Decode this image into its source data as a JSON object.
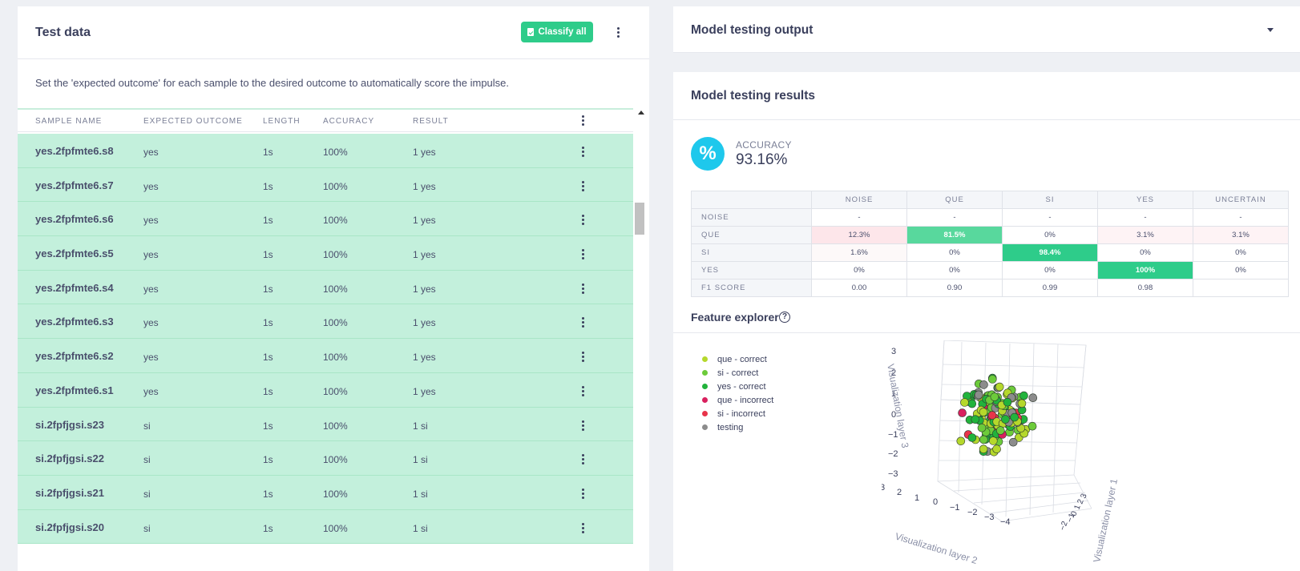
{
  "test_data": {
    "title": "Test data",
    "classify_all_label": "Classify all",
    "description": "Set the 'expected outcome' for each sample to the desired outcome to automatically score the impulse.",
    "columns": [
      "SAMPLE NAME",
      "EXPECTED OUTCOME",
      "LENGTH",
      "ACCURACY",
      "RESULT"
    ],
    "rows": [
      {
        "name": "yes.2fpfmte6.s8",
        "expected": "yes",
        "length": "1s",
        "accuracy": "100%",
        "result": "1 yes"
      },
      {
        "name": "yes.2fpfmte6.s7",
        "expected": "yes",
        "length": "1s",
        "accuracy": "100%",
        "result": "1 yes"
      },
      {
        "name": "yes.2fpfmte6.s6",
        "expected": "yes",
        "length": "1s",
        "accuracy": "100%",
        "result": "1 yes"
      },
      {
        "name": "yes.2fpfmte6.s5",
        "expected": "yes",
        "length": "1s",
        "accuracy": "100%",
        "result": "1 yes"
      },
      {
        "name": "yes.2fpfmte6.s4",
        "expected": "yes",
        "length": "1s",
        "accuracy": "100%",
        "result": "1 yes"
      },
      {
        "name": "yes.2fpfmte6.s3",
        "expected": "yes",
        "length": "1s",
        "accuracy": "100%",
        "result": "1 yes"
      },
      {
        "name": "yes.2fpfmte6.s2",
        "expected": "yes",
        "length": "1s",
        "accuracy": "100%",
        "result": "1 yes"
      },
      {
        "name": "yes.2fpfmte6.s1",
        "expected": "yes",
        "length": "1s",
        "accuracy": "100%",
        "result": "1 yes"
      },
      {
        "name": "si.2fpfjgsi.s23",
        "expected": "si",
        "length": "1s",
        "accuracy": "100%",
        "result": "1 si"
      },
      {
        "name": "si.2fpfjgsi.s22",
        "expected": "si",
        "length": "1s",
        "accuracy": "100%",
        "result": "1 si"
      },
      {
        "name": "si.2fpfjgsi.s21",
        "expected": "si",
        "length": "1s",
        "accuracy": "100%",
        "result": "1 si"
      },
      {
        "name": "si.2fpfjgsi.s20",
        "expected": "si",
        "length": "1s",
        "accuracy": "100%",
        "result": "1 si"
      }
    ]
  },
  "output_card": {
    "title": "Model testing output"
  },
  "results": {
    "title": "Model testing results",
    "accuracy_icon": "%",
    "accuracy_label": "ACCURACY",
    "accuracy_value": "93.16%",
    "matrix": {
      "columns": [
        "NOISE",
        "QUE",
        "SI",
        "YES",
        "UNCERTAIN"
      ],
      "rows": [
        {
          "label": "NOISE",
          "cells": [
            "-",
            "-",
            "-",
            "-",
            "-"
          ]
        },
        {
          "label": "QUE",
          "cells": [
            "12.3%",
            "81.5%",
            "0%",
            "3.1%",
            "3.1%"
          ]
        },
        {
          "label": "SI",
          "cells": [
            "1.6%",
            "0%",
            "98.4%",
            "0%",
            "0%"
          ]
        },
        {
          "label": "YES",
          "cells": [
            "0%",
            "0%",
            "0%",
            "100%",
            "0%"
          ]
        },
        {
          "label": "F1 SCORE",
          "cells": [
            "0.00",
            "0.90",
            "0.99",
            "0.98",
            ""
          ]
        }
      ]
    },
    "feature_explorer_title": "Feature explorer",
    "help_icon": "?",
    "legend": [
      {
        "label": "que - correct",
        "color": "#b5d82c"
      },
      {
        "label": "si - correct",
        "color": "#6ccb3a"
      },
      {
        "label": "yes - correct",
        "color": "#22b33c"
      },
      {
        "label": "que - incorrect",
        "color": "#d9205e"
      },
      {
        "label": "si - incorrect",
        "color": "#e8344a"
      },
      {
        "label": "testing",
        "color": "#8c8c8c"
      }
    ],
    "plot_axes": {
      "z_label": "Visualization layer 3",
      "x_label": "Visualization layer 2",
      "y_label": "Visualization layer 1",
      "z_ticks": [
        "3",
        "2",
        "1",
        "0",
        "−1",
        "−2",
        "−3"
      ],
      "x_ticks": [
        "3",
        "2",
        "1",
        "0",
        "−1",
        "−2",
        "−3",
        "−4"
      ],
      "y_ticks": [
        "−2",
        "−1",
        "0",
        "1",
        "2",
        "3"
      ]
    }
  }
}
